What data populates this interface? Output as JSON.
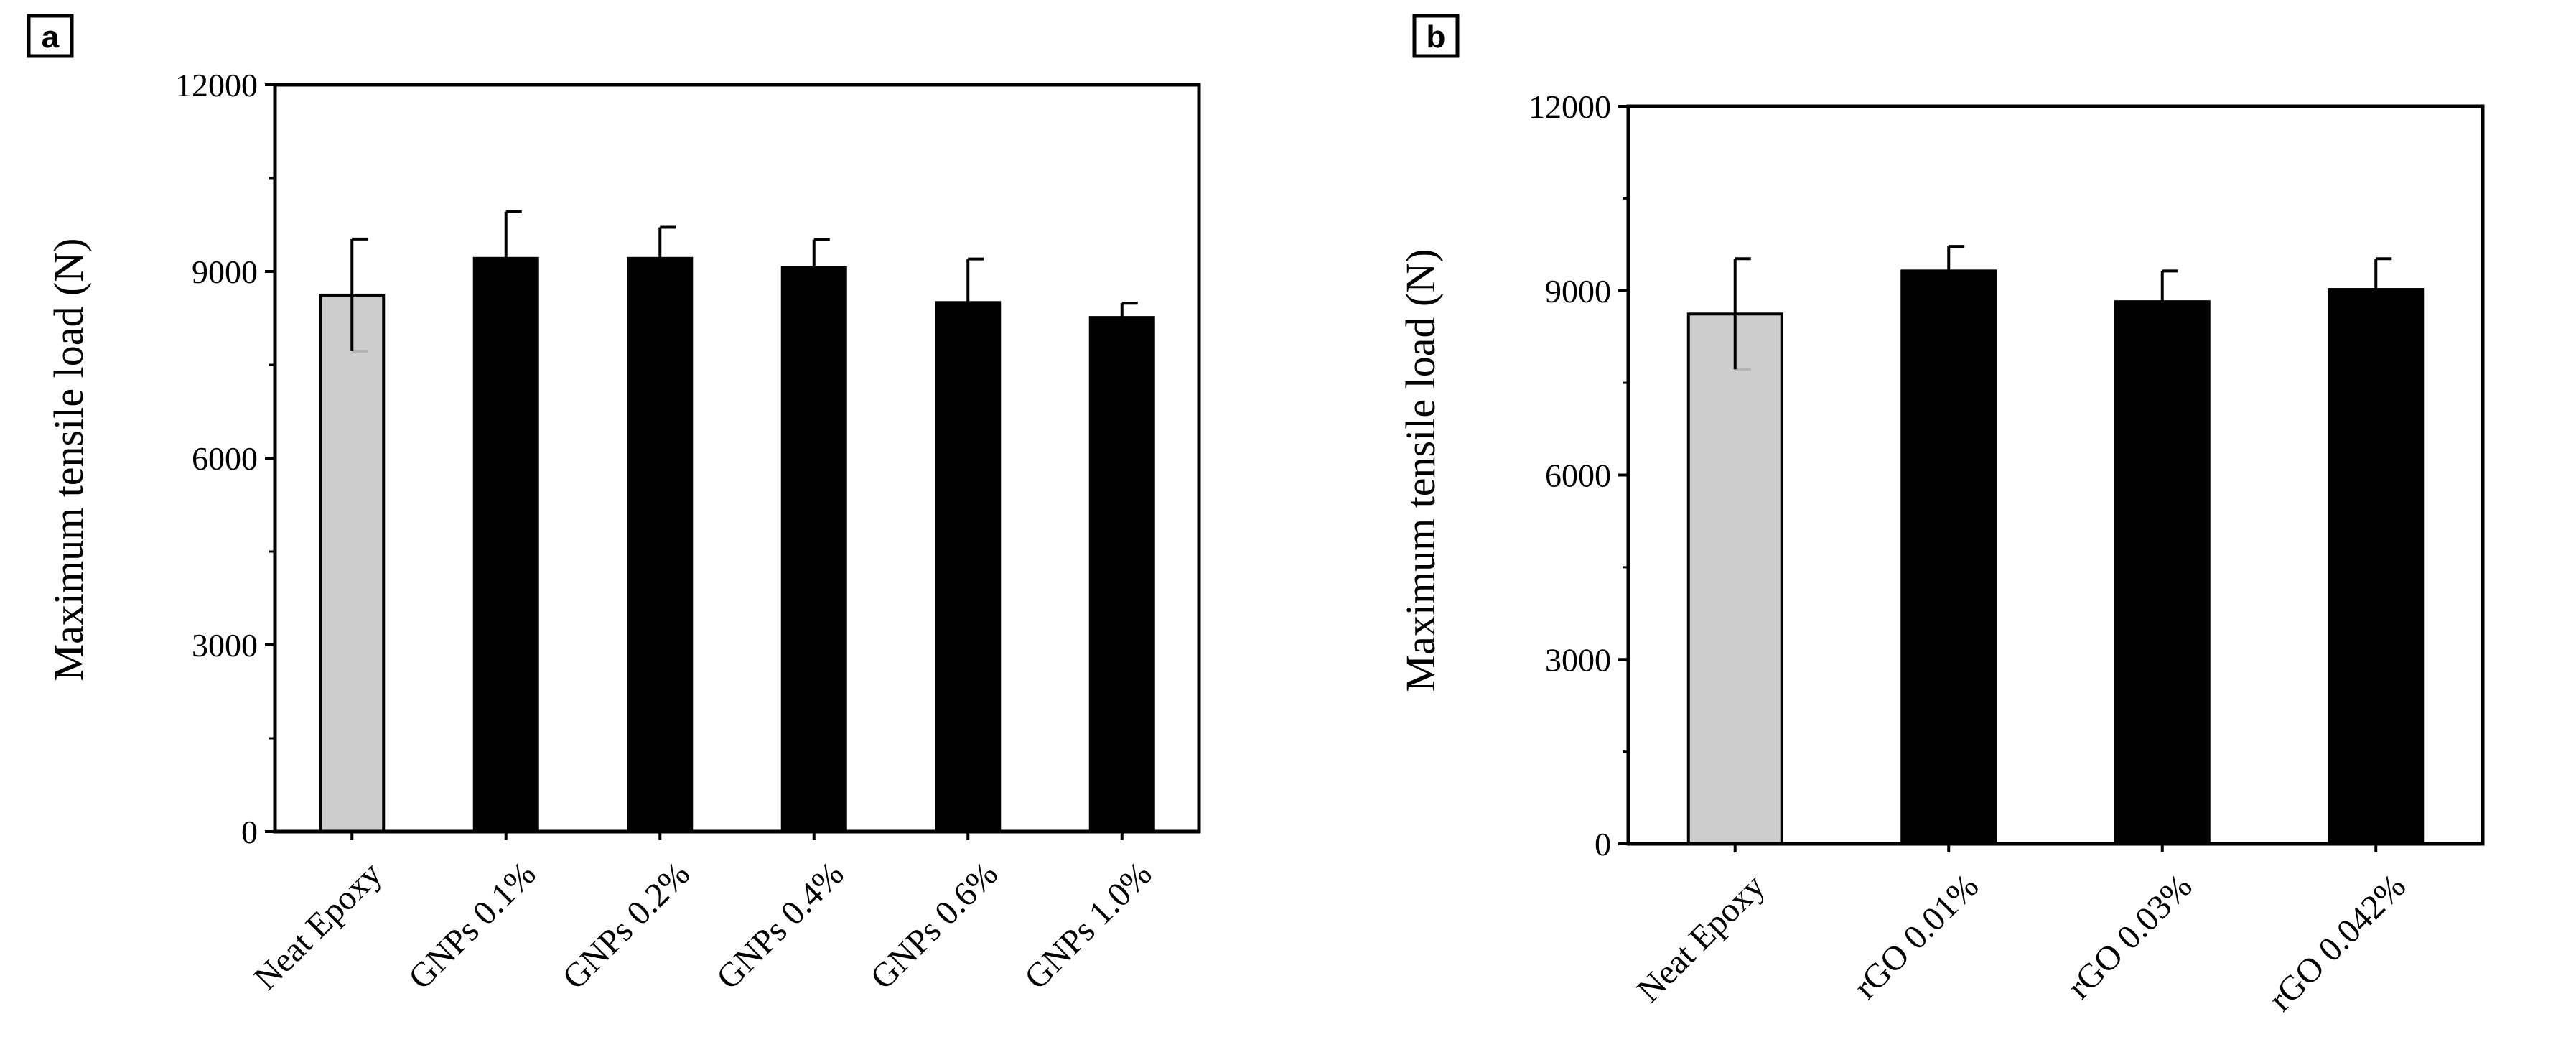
{
  "colors": {
    "neat": "#c8c8c8",
    "filler": "#000000",
    "axis": "#000000",
    "background": "#ffffff"
  },
  "chart_data": [
    {
      "panel": "a",
      "type": "bar",
      "title": "",
      "xlabel": "",
      "ylabel": "Maximum tensile load (N)",
      "ylim": [
        0,
        12000
      ],
      "yticks": [
        0,
        3000,
        6000,
        9000,
        12000
      ],
      "categories": [
        "Neat Epoxy",
        "GNPs 0.1%",
        "GNPs 0.2%",
        "GNPs 0.4%",
        "GNPs 0.6%",
        "GNPs 1.0%"
      ],
      "values": [
        8620,
        9210,
        9210,
        9060,
        8500,
        8260
      ],
      "errors": [
        900,
        750,
        500,
        450,
        700,
        230
      ],
      "bar_colors": [
        "neat",
        "filler",
        "filler",
        "filler",
        "filler",
        "filler"
      ],
      "grid": false,
      "legend": "none"
    },
    {
      "panel": "b",
      "type": "bar",
      "title": "",
      "xlabel": "",
      "ylabel": "Maximum tensile load (N)",
      "ylim": [
        0,
        12000
      ],
      "yticks": [
        0,
        3000,
        6000,
        9000,
        12000
      ],
      "categories": [
        "Neat Epoxy",
        "rGO 0.01%",
        "rGO 0.03%",
        "rGO 0.042%"
      ],
      "values": [
        8620,
        9320,
        8820,
        9020
      ],
      "errors": [
        900,
        400,
        500,
        500
      ],
      "bar_colors": [
        "neat",
        "filler",
        "filler",
        "filler"
      ],
      "grid": false,
      "legend": "none"
    }
  ]
}
